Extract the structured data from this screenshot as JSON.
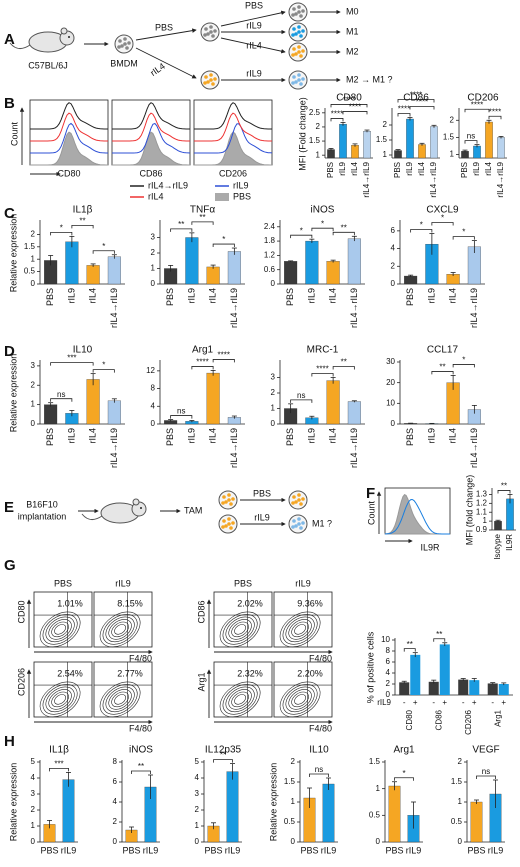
{
  "panel_labels": [
    "A",
    "B",
    "C",
    "D",
    "E",
    "F",
    "G",
    "H"
  ],
  "panel_a": {
    "mouse": "C57BL/6J",
    "cells": "BMDM",
    "branch_top": "PBS",
    "branch_bottom": "rIL4",
    "treatments": [
      "PBS",
      "rIL9",
      "rIL4"
    ],
    "outcomes": [
      "M0",
      "M1",
      "M2"
    ],
    "bottom_treatment": "rIL9",
    "bottom_outcome": "M2 → M1 ?"
  },
  "panel_b": {
    "count_label": "Count",
    "markers": [
      "CD80",
      "CD86",
      "CD206"
    ],
    "legend": [
      "rIL4→rIL9",
      "rIL9",
      "rIL4",
      "PBS"
    ]
  },
  "panel_e": {
    "source": "B16F10",
    "step": "implantation",
    "cells": "TAM",
    "treatments": [
      "PBS",
      "rIL9"
    ],
    "outcome": "M1 ?"
  },
  "panel_f": {
    "count_label": "Count",
    "marker": "IL9R"
  },
  "panel_g": {
    "conditions": [
      "PBS",
      "rIL9"
    ],
    "x_marker": "F4/80",
    "plots": [
      {
        "marker": "CD80",
        "percentages": [
          "1.01%",
          "8.15%"
        ]
      },
      {
        "marker": "CD86",
        "percentages": [
          "2.02%",
          "9.36%"
        ]
      },
      {
        "marker": "CD206",
        "percentages": [
          "2.54%",
          "2.77%"
        ]
      },
      {
        "marker": "Arg1",
        "percentages": [
          "2.32%",
          "2.20%"
        ]
      }
    ]
  },
  "chart_data": [
    {
      "type": "bar",
      "title": "CD80",
      "ylabel": "MFI (Fold change)",
      "categories": [
        "PBS",
        "rIL9",
        "rIL4",
        "rIL4→rIL9"
      ],
      "values": [
        1.2,
        2.1,
        1.35,
        1.85
      ],
      "errors": [
        0.04,
        0.06,
        0.05,
        0.04
      ],
      "colors": [
        "#3a3a3a",
        "#1a9be0",
        "#f5a623",
        "#b9d3ee"
      ],
      "ylim": [
        0.9,
        2.6
      ],
      "yticks": [
        1,
        1.5,
        2,
        2.5
      ],
      "significance": [
        "****",
        "****",
        "****"
      ]
    },
    {
      "type": "bar",
      "title": "CD86",
      "categories": [
        "PBS",
        "rIL9",
        "rIL4",
        "rIL4→rIL9"
      ],
      "values": [
        1.15,
        2.2,
        1.35,
        1.95
      ],
      "errors": [
        0.03,
        0.05,
        0.04,
        0.04
      ],
      "colors": [
        "#3a3a3a",
        "#1a9be0",
        "#f5a623",
        "#b9d3ee"
      ],
      "ylim": [
        0.9,
        2.5
      ],
      "yticks": [
        1,
        1.5,
        2
      ],
      "significance": [
        "****",
        "****",
        "****"
      ]
    },
    {
      "type": "bar",
      "title": "CD206",
      "categories": [
        "PBS",
        "rIL9",
        "rIL4",
        "rIL4→rIL9"
      ],
      "values": [
        1.1,
        1.25,
        1.95,
        1.5
      ],
      "errors": [
        0.03,
        0.04,
        0.05,
        0.03
      ],
      "colors": [
        "#3a3a3a",
        "#1a9be0",
        "#f5a623",
        "#b9d3ee"
      ],
      "ylim": [
        0.9,
        2.3
      ],
      "yticks": [
        1,
        1.5,
        2
      ],
      "significance": [
        "ns",
        "****",
        "****"
      ]
    },
    {
      "type": "bar",
      "title": "IL1β",
      "ylabel": "Relative expression",
      "categories": [
        "PBS",
        "rIL9",
        "rIL4",
        "rIL4→rIL9"
      ],
      "values": [
        0.95,
        1.7,
        0.75,
        1.1
      ],
      "errors": [
        0.2,
        0.22,
        0.06,
        0.08
      ],
      "colors": [
        "#3a3a3a",
        "#1a9be0",
        "#f5a623",
        "#a9c9ec"
      ],
      "ylim": [
        0,
        2.5
      ],
      "yticks": [
        0,
        0.5,
        1,
        1.5,
        2
      ],
      "significance": [
        "*",
        "**",
        "*"
      ]
    },
    {
      "type": "bar",
      "title": "TNFα",
      "categories": [
        "PBS",
        "rIL9",
        "rIL4",
        "rIL4→rIL9"
      ],
      "values": [
        1,
        3,
        1.1,
        2.1
      ],
      "errors": [
        0.2,
        0.3,
        0.12,
        0.22
      ],
      "colors": [
        "#3a3a3a",
        "#1a9be0",
        "#f5a623",
        "#a9c9ec"
      ],
      "ylim": [
        0,
        4
      ],
      "yticks": [
        0,
        1,
        2,
        3
      ],
      "significance": [
        "**",
        "**",
        "*"
      ]
    },
    {
      "type": "bar",
      "title": "iNOS",
      "categories": [
        "PBS",
        "rIL9",
        "rIL4",
        "rIL4→rIL9"
      ],
      "values": [
        0.95,
        1.8,
        0.95,
        1.9
      ],
      "errors": [
        0.02,
        0.08,
        0.05,
        0.1
      ],
      "colors": [
        "#3a3a3a",
        "#1a9be0",
        "#f5a623",
        "#a9c9ec"
      ],
      "ylim": [
        0,
        2.6
      ],
      "yticks": [
        0,
        0.6,
        1.2,
        1.8,
        2.4
      ],
      "significance": [
        "*",
        "*",
        "**"
      ]
    },
    {
      "type": "bar",
      "title": "CXCL9",
      "categories": [
        "PBS",
        "rIL9",
        "rIL4",
        "rIL4→rIL9"
      ],
      "values": [
        0.9,
        4.5,
        1.1,
        4.2
      ],
      "errors": [
        0.1,
        1.2,
        0.2,
        0.7
      ],
      "colors": [
        "#3a3a3a",
        "#1a9be0",
        "#f5a623",
        "#a9c9ec"
      ],
      "ylim": [
        0,
        7
      ],
      "yticks": [
        0,
        2,
        4,
        6
      ],
      "significance": [
        "*",
        "*",
        "*"
      ]
    },
    {
      "type": "bar",
      "title": "IL10",
      "ylabel": "Relative expression",
      "categories": [
        "PBS",
        "rIL9",
        "rIL4",
        "rIL4→rIL9"
      ],
      "values": [
        1,
        0.55,
        2.3,
        1.2
      ],
      "errors": [
        0.1,
        0.15,
        0.3,
        0.1
      ],
      "colors": [
        "#3a3a3a",
        "#1a9be0",
        "#f5a623",
        "#a9c9ec"
      ],
      "ylim": [
        0,
        3.2
      ],
      "yticks": [
        0,
        1,
        2,
        3
      ],
      "significance": [
        "ns",
        "***",
        "*"
      ]
    },
    {
      "type": "bar",
      "title": "Arg1",
      "categories": [
        "PBS",
        "rIL9",
        "rIL4",
        "rIL4→rIL9"
      ],
      "values": [
        0.8,
        0.6,
        11.5,
        1.5
      ],
      "errors": [
        0.2,
        0.2,
        0.6,
        0.3
      ],
      "colors": [
        "#3a3a3a",
        "#1a9be0",
        "#f5a623",
        "#a9c9ec"
      ],
      "ylim": [
        0,
        14
      ],
      "yticks": [
        0,
        4,
        8,
        12
      ],
      "significance": [
        "ns",
        "****",
        "****"
      ]
    },
    {
      "type": "bar",
      "title": "MRC-1",
      "categories": [
        "PBS",
        "rIL9",
        "rIL4",
        "rIL4→rIL9"
      ],
      "values": [
        1,
        0.4,
        2.8,
        1.45
      ],
      "errors": [
        0.3,
        0.1,
        0.2,
        0.05
      ],
      "colors": [
        "#3a3a3a",
        "#1a9be0",
        "#f5a623",
        "#a9c9ec"
      ],
      "ylim": [
        0,
        4
      ],
      "yticks": [
        0,
        1,
        2,
        3
      ],
      "significance": [
        "ns",
        "****",
        "**"
      ]
    },
    {
      "type": "bar",
      "title": "CCL17",
      "categories": [
        "PBS",
        "rIL9",
        "rIL4",
        "rIL4→rIL9"
      ],
      "values": [
        0.3,
        0.2,
        20,
        7
      ],
      "errors": [
        0.1,
        0.1,
        3.5,
        2
      ],
      "colors": [
        "#3a3a3a",
        "#1a9be0",
        "#f5a623",
        "#a9c9ec"
      ],
      "ylim": [
        0,
        30
      ],
      "yticks": [
        0,
        10,
        20,
        30
      ],
      "significance": [
        "**",
        "*"
      ]
    },
    {
      "type": "bar",
      "ylabel": "MFI (fold change)",
      "categories": [
        "Isotype",
        "IL9R"
      ],
      "values": [
        1,
        1.25
      ],
      "errors": [
        0.01,
        0.05
      ],
      "colors": [
        "#3a3a3a",
        "#1a9be0"
      ],
      "ylim": [
        0.9,
        1.35
      ],
      "yticks": [
        0.9,
        1,
        1.1,
        1.2,
        1.3
      ],
      "significance": [
        "**"
      ]
    },
    {
      "type": "bar",
      "ylabel": "% of positive cells",
      "x_label": "rIL9",
      "categories": [
        "CD80",
        "CD86",
        "CD206",
        "Arg1"
      ],
      "series": [
        {
          "name": "-",
          "color": "#3a3a3a",
          "values": [
            2.3,
            2.4,
            2.8,
            2.1
          ],
          "errors": [
            0.2,
            0.3,
            0.2,
            0.15
          ]
        },
        {
          "name": "+",
          "color": "#1a9be0",
          "values": [
            7.3,
            9.2,
            2.7,
            2.0
          ],
          "errors": [
            0.4,
            0.3,
            0.3,
            0.2
          ]
        }
      ],
      "ylim": [
        0,
        10
      ],
      "yticks": [
        0,
        2,
        4,
        6,
        8,
        10
      ],
      "significance": [
        "**",
        "**"
      ]
    },
    {
      "type": "bar",
      "title": "IL1β",
      "ylabel": "Relative expression",
      "categories": [
        "PBS",
        "rIL9"
      ],
      "values": [
        1.1,
        3.9
      ],
      "errors": [
        0.25,
        0.45
      ],
      "colors": [
        "#f5a623",
        "#1a9be0"
      ],
      "ylim": [
        0,
        5
      ],
      "yticks": [
        0,
        1,
        2,
        3,
        4,
        5
      ],
      "significance": [
        "***"
      ]
    },
    {
      "type": "bar",
      "title": "iNOS",
      "categories": [
        "PBS",
        "rIL9"
      ],
      "values": [
        1.2,
        5.5
      ],
      "errors": [
        0.3,
        1.2
      ],
      "colors": [
        "#f5a623",
        "#1a9be0"
      ],
      "ylim": [
        0,
        8
      ],
      "yticks": [
        0,
        2,
        4,
        6,
        8
      ],
      "significance": [
        "**"
      ]
    },
    {
      "type": "bar",
      "title": "IL12p35",
      "categories": [
        "PBS",
        "rIL9"
      ],
      "values": [
        1,
        4.4
      ],
      "errors": [
        0.2,
        0.5
      ],
      "colors": [
        "#f5a623",
        "#1a9be0"
      ],
      "ylim": [
        0,
        5
      ],
      "yticks": [
        0,
        1,
        2,
        3,
        4,
        5
      ],
      "significance": [
        "**"
      ]
    },
    {
      "type": "bar",
      "title": "IL10",
      "ylabel": "Relative expression",
      "categories": [
        "PBS",
        "rIL9"
      ],
      "values": [
        1.1,
        1.45
      ],
      "errors": [
        0.25,
        0.15
      ],
      "colors": [
        "#f5a623",
        "#1a9be0"
      ],
      "ylim": [
        0,
        2
      ],
      "yticks": [
        0,
        0.5,
        1,
        1.5,
        2
      ],
      "significance": [
        "ns"
      ]
    },
    {
      "type": "bar",
      "title": "Arg1",
      "categories": [
        "PBS",
        "rIL9"
      ],
      "values": [
        1.05,
        0.5
      ],
      "errors": [
        0.08,
        0.25
      ],
      "colors": [
        "#f5a623",
        "#1a9be0"
      ],
      "ylim": [
        0,
        1.5
      ],
      "yticks": [
        0,
        0.5,
        1,
        1.5
      ],
      "significance": [
        "*"
      ]
    },
    {
      "type": "bar",
      "title": "VEGF",
      "categories": [
        "PBS",
        "rIL9"
      ],
      "values": [
        1,
        1.2
      ],
      "errors": [
        0.05,
        0.35
      ],
      "colors": [
        "#f5a623",
        "#1a9be0"
      ],
      "ylim": [
        0,
        2
      ],
      "yticks": [
        0,
        0.5,
        1,
        1.5,
        2
      ],
      "significance": [
        "ns"
      ]
    }
  ]
}
